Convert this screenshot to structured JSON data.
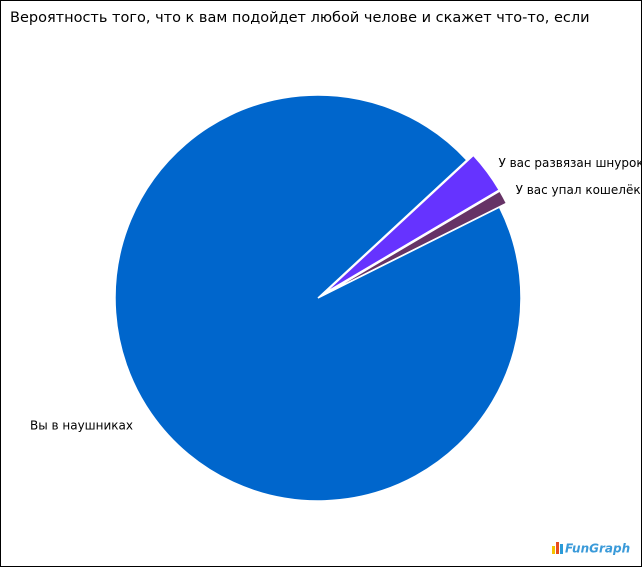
{
  "chart_data": {
    "type": "pie",
    "title": "Вероятность того, что к вам подойдет любой челове и скажет что-то, если",
    "categories": [
      "У вас развязан шнурок",
      "У вас упал кошелёк",
      "Вы в наушниках"
    ],
    "values": [
      3.4,
      1.1,
      95.5
    ],
    "colors": [
      "#6633ff",
      "#663366",
      "#0066cc"
    ],
    "explode": [
      true,
      true,
      false
    ],
    "watermark": "FunGraph"
  }
}
